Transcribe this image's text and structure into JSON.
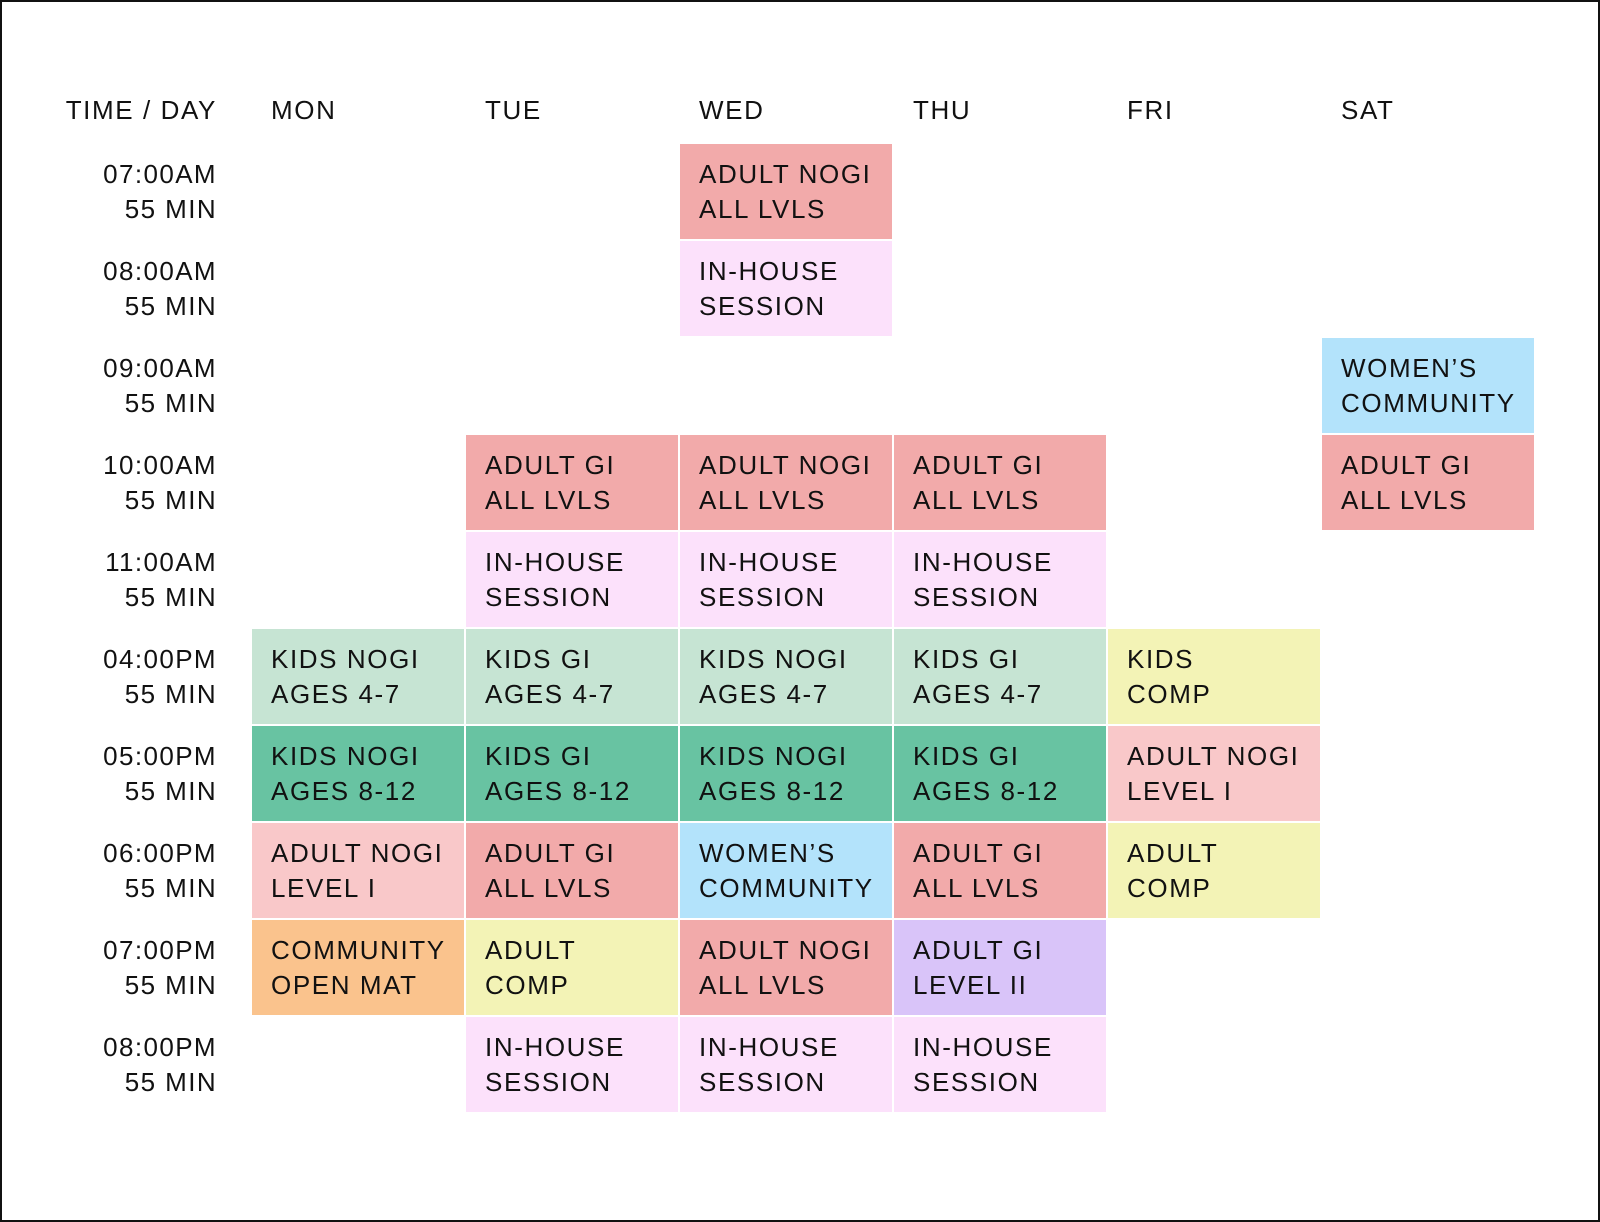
{
  "header": {
    "time_label": "TIME / DAY",
    "days": [
      "MON",
      "TUE",
      "WED",
      "THU",
      "FRI",
      "SAT"
    ]
  },
  "colors": {
    "adult_all": "#f2aaaa",
    "inhouse": "#fce1fb",
    "womens": "#b3e3fb",
    "kids_young": "#c6e4d3",
    "kids_old": "#68c3a2",
    "adult_l1": "#f9c8c9",
    "comp": "#f3f3b6",
    "openmat": "#fac38d",
    "level2": "#d9c4f9"
  },
  "rows": [
    {
      "time": "07:00AM",
      "duration": "55 MIN",
      "cells": [
        null,
        null,
        {
          "line1": "ADULT NOGI",
          "line2": "ALL LVLS",
          "color": "adult_all"
        },
        null,
        null,
        null
      ]
    },
    {
      "time": "08:00AM",
      "duration": "55 MIN",
      "cells": [
        null,
        null,
        {
          "line1": "IN-HOUSE",
          "line2": "SESSION",
          "color": "inhouse"
        },
        null,
        null,
        null
      ]
    },
    {
      "time": "09:00AM",
      "duration": "55 MIN",
      "cells": [
        null,
        null,
        null,
        null,
        null,
        {
          "line1": "WOMEN’S",
          "line2": "COMMUNITY",
          "color": "womens"
        }
      ]
    },
    {
      "time": "10:00AM",
      "duration": "55 MIN",
      "cells": [
        null,
        {
          "line1": "ADULT GI",
          "line2": "ALL LVLS",
          "color": "adult_all"
        },
        {
          "line1": "ADULT NOGI",
          "line2": "ALL LVLS",
          "color": "adult_all"
        },
        {
          "line1": "ADULT GI",
          "line2": "ALL LVLS",
          "color": "adult_all"
        },
        null,
        {
          "line1": "ADULT GI",
          "line2": "ALL LVLS",
          "color": "adult_all"
        }
      ]
    },
    {
      "time": "11:00AM",
      "duration": "55 MIN",
      "cells": [
        null,
        {
          "line1": "IN-HOUSE",
          "line2": "SESSION",
          "color": "inhouse"
        },
        {
          "line1": "IN-HOUSE",
          "line2": "SESSION",
          "color": "inhouse"
        },
        {
          "line1": "IN-HOUSE",
          "line2": "SESSION",
          "color": "inhouse"
        },
        null,
        null
      ]
    },
    {
      "time": "04:00PM",
      "duration": "55 MIN",
      "cells": [
        {
          "line1": "KIDS NOGI",
          "line2": "AGES 4-7",
          "color": "kids_young"
        },
        {
          "line1": "KIDS GI",
          "line2": "AGES 4-7",
          "color": "kids_young"
        },
        {
          "line1": "KIDS NOGI",
          "line2": "AGES 4-7",
          "color": "kids_young"
        },
        {
          "line1": "KIDS GI",
          "line2": "AGES 4-7",
          "color": "kids_young"
        },
        {
          "line1": "KIDS",
          "line2": "COMP",
          "color": "comp"
        },
        null
      ]
    },
    {
      "time": "05:00PM",
      "duration": "55 MIN",
      "cells": [
        {
          "line1": "KIDS NOGI",
          "line2": "AGES 8-12",
          "color": "kids_old"
        },
        {
          "line1": "KIDS GI",
          "line2": "AGES 8-12",
          "color": "kids_old"
        },
        {
          "line1": "KIDS NOGI",
          "line2": "AGES 8-12",
          "color": "kids_old"
        },
        {
          "line1": "KIDS GI",
          "line2": "AGES 8-12",
          "color": "kids_old"
        },
        {
          "line1": "ADULT NOGI",
          "line2": "LEVEL I",
          "color": "adult_l1"
        },
        null
      ]
    },
    {
      "time": "06:00PM",
      "duration": "55 MIN",
      "cells": [
        {
          "line1": "ADULT NOGI",
          "line2": "LEVEL I",
          "color": "adult_l1"
        },
        {
          "line1": "ADULT GI",
          "line2": "ALL LVLS",
          "color": "adult_all"
        },
        {
          "line1": "WOMEN’S",
          "line2": "COMMUNITY",
          "color": "womens"
        },
        {
          "line1": "ADULT GI",
          "line2": "ALL LVLS",
          "color": "adult_all"
        },
        {
          "line1": "ADULT",
          "line2": "COMP",
          "color": "comp"
        },
        null
      ]
    },
    {
      "time": "07:00PM",
      "duration": "55 MIN",
      "cells": [
        {
          "line1": "COMMUNITY",
          "line2": "OPEN MAT",
          "color": "openmat"
        },
        {
          "line1": "ADULT",
          "line2": "COMP",
          "color": "comp"
        },
        {
          "line1": "ADULT NOGI",
          "line2": "ALL LVLS",
          "color": "adult_all"
        },
        {
          "line1": "ADULT GI",
          "line2": "LEVEL II",
          "color": "level2"
        },
        null,
        null
      ]
    },
    {
      "time": "08:00PM",
      "duration": "55 MIN",
      "cells": [
        null,
        {
          "line1": "IN-HOUSE",
          "line2": "SESSION",
          "color": "inhouse"
        },
        {
          "line1": "IN-HOUSE",
          "line2": "SESSION",
          "color": "inhouse"
        },
        {
          "line1": "IN-HOUSE",
          "line2": "SESSION",
          "color": "inhouse"
        },
        null,
        null
      ]
    }
  ]
}
